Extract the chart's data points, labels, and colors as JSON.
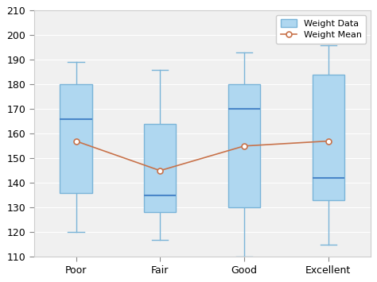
{
  "categories": [
    "Poor",
    "Fair",
    "Good",
    "Excellent"
  ],
  "boxes": [
    {
      "q1": 136,
      "median": 166,
      "q3": 180,
      "whislo": 120,
      "whishi": 189,
      "mean": 157
    },
    {
      "q1": 128,
      "median": 135,
      "q3": 164,
      "whislo": 117,
      "whishi": 186,
      "mean": 145
    },
    {
      "q1": 130,
      "median": 170,
      "q3": 180,
      "whislo": 110,
      "whishi": 193,
      "mean": 155
    },
    {
      "q1": 133,
      "median": 142,
      "q3": 184,
      "whislo": 115,
      "whishi": 196,
      "mean": 157
    }
  ],
  "ylim": [
    110,
    210
  ],
  "yticks": [
    110,
    120,
    130,
    140,
    150,
    160,
    170,
    180,
    190,
    200,
    210
  ],
  "box_facecolor": "#afd7f0",
  "box_edgecolor": "#7ab4d8",
  "median_color": "#4a86c8",
  "whisker_color": "#7ab4d8",
  "cap_color": "#7ab4d8",
  "mean_line_color": "#c8724a",
  "mean_marker_facecolor": "white",
  "mean_marker_edgecolor": "#c8724a",
  "axes_bg_color": "#f0f0f0",
  "legend_box_color": "#afd7f0",
  "legend_box_edge": "#7ab4d8",
  "legend_label_box": "Weight Data",
  "legend_label_mean": "Weight Mean",
  "figsize": [
    4.74,
    3.55
  ],
  "dpi": 100,
  "box_width": 0.38,
  "positions": [
    1,
    2,
    3,
    4
  ],
  "xlim": [
    0.5,
    4.5
  ]
}
